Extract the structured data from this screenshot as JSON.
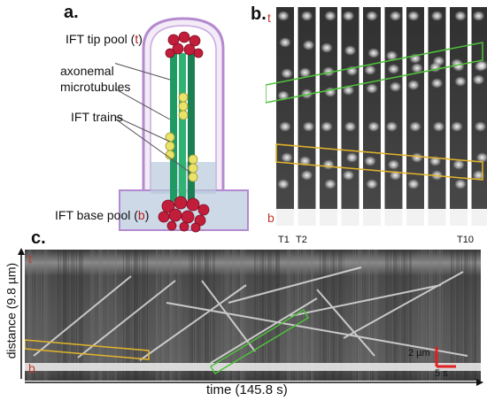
{
  "panel_a": {
    "letter": "a.",
    "tip_pool": {
      "text": "IFT tip pool (",
      "abbr": "t",
      "close": ")"
    },
    "axonemal": [
      "axonemal",
      "microtubules"
    ],
    "trains": "IFT trains",
    "base_pool": {
      "text": "IFT base pool (",
      "abbr": "b",
      "close": ")"
    }
  },
  "panel_b": {
    "letter": "b.",
    "tip_marker": "t",
    "base_marker": "b",
    "frame_labels": [
      "T1",
      "T2",
      "T10"
    ],
    "frame_count": 10
  },
  "panel_c": {
    "letter": "c.",
    "ylabel": "distance (9.8 µm)",
    "xlabel": "time (145.8 s)",
    "tip_marker": "t",
    "base_marker": "b",
    "scale_distance": "2 µm",
    "scale_time": "5 s"
  },
  "colors": {
    "tip_red": "#b3201f",
    "green_box": "#4fc23a",
    "yellow_box": "#e3b52b",
    "axoneme_green": "#1f9a63",
    "membrane_purple": "#b48ad0",
    "scale_red": "#e0201f"
  }
}
